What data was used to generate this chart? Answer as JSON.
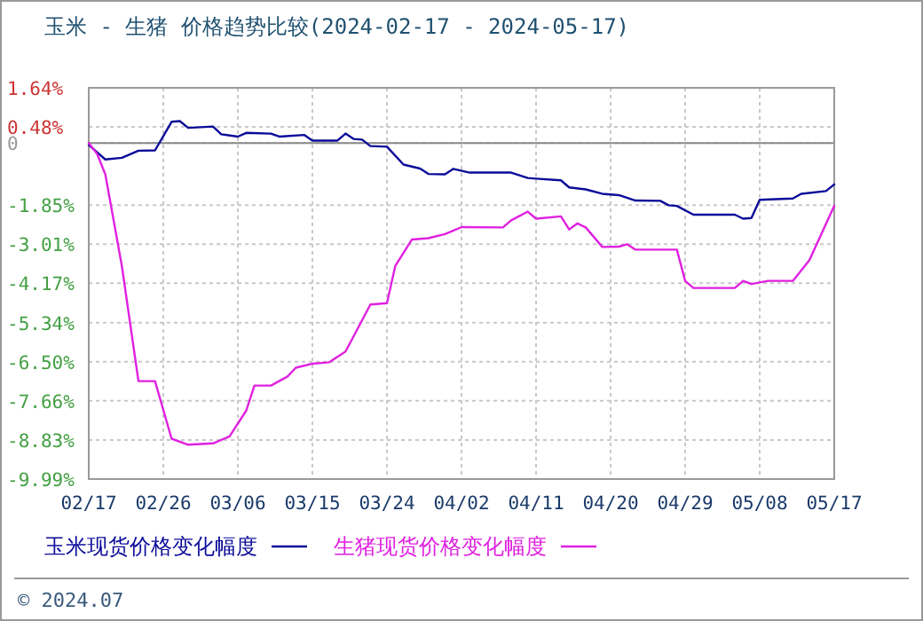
{
  "chart_data": {
    "type": "line",
    "title": "玉米 - 生猪 价格趋势比较(2024-02-17 - 2024-05-17)",
    "x": [
      "2024-02-17",
      "2024-02-19",
      "2024-02-21",
      "2024-02-23",
      "2024-02-25",
      "2024-02-27",
      "2024-02-28",
      "2024-02-29",
      "2024-03-03",
      "2024-03-04",
      "2024-03-06",
      "2024-03-07",
      "2024-03-10",
      "2024-03-11",
      "2024-03-14",
      "2024-03-15",
      "2024-03-18",
      "2024-03-19",
      "2024-03-20",
      "2024-03-21",
      "2024-03-22",
      "2024-03-24",
      "2024-03-26",
      "2024-03-28",
      "2024-03-29",
      "2024-03-31",
      "2024-04-01",
      "2024-04-03",
      "2024-04-08",
      "2024-04-10",
      "2024-04-11",
      "2024-04-14",
      "2024-04-15",
      "2024-04-17",
      "2024-04-19",
      "2024-04-21",
      "2024-04-23",
      "2024-04-26",
      "2024-04-27",
      "2024-04-28",
      "2024-04-30",
      "2024-05-05",
      "2024-05-06",
      "2024-05-07",
      "2024-05-08",
      "2024-05-12",
      "2024-05-13",
      "2024-05-16",
      "2024-05-17"
    ],
    "series": [
      {
        "name": "玉米现货价格变化幅度",
        "color": "#0a0a99",
        "values": [
          -0.06,
          -0.49,
          -0.44,
          -0.23,
          -0.22,
          0.63,
          0.65,
          0.45,
          0.49,
          0.26,
          0.19,
          0.3,
          0.28,
          0.19,
          0.24,
          0.07,
          0.07,
          0.28,
          0.12,
          0.1,
          -0.09,
          -0.11,
          -0.64,
          -0.76,
          -0.92,
          -0.93,
          -0.77,
          -0.88,
          -0.88,
          -1.04,
          -1.06,
          -1.11,
          -1.32,
          -1.38,
          -1.51,
          -1.55,
          -1.71,
          -1.72,
          -1.85,
          -1.87,
          -2.13,
          -2.13,
          -2.25,
          -2.23,
          -1.69,
          -1.65,
          -1.51,
          -1.43,
          -1.23
        ]
      },
      {
        "name": "生猪现货价格变化幅度",
        "color": "#e020e0",
        "x": [
          "2024-02-17",
          "2024-02-18",
          "2024-02-19",
          "2024-02-21",
          "2024-02-23",
          "2024-02-25",
          "2024-02-27",
          "2024-02-29",
          "2024-03-03",
          "2024-03-05",
          "2024-03-07",
          "2024-03-08",
          "2024-03-10",
          "2024-03-12",
          "2024-03-13",
          "2024-03-15",
          "2024-03-17",
          "2024-03-19",
          "2024-03-22",
          "2024-03-24",
          "2024-03-25",
          "2024-03-27",
          "2024-03-29",
          "2024-03-31",
          "2024-04-02",
          "2024-04-07",
          "2024-04-08",
          "2024-04-10",
          "2024-04-11",
          "2024-04-14",
          "2024-04-15",
          "2024-04-16",
          "2024-04-17",
          "2024-04-19",
          "2024-04-21",
          "2024-04-22",
          "2024-04-23",
          "2024-04-28",
          "2024-04-29",
          "2024-04-30",
          "2024-05-05",
          "2024-05-06",
          "2024-05-07",
          "2024-05-09",
          "2024-05-12",
          "2024-05-14",
          "2024-05-17"
        ],
        "values": [
          0.0,
          -0.32,
          -0.93,
          -3.66,
          -7.08,
          -7.08,
          -8.79,
          -8.97,
          -8.93,
          -8.72,
          -7.96,
          -7.21,
          -7.21,
          -6.94,
          -6.68,
          -6.56,
          -6.52,
          -6.2,
          -4.8,
          -4.76,
          -3.66,
          -2.87,
          -2.83,
          -2.71,
          -2.5,
          -2.51,
          -2.3,
          -2.04,
          -2.25,
          -2.18,
          -2.57,
          -2.39,
          -2.51,
          -3.09,
          -3.08,
          -3.01,
          -3.17,
          -3.17,
          -4.1,
          -4.31,
          -4.31,
          -4.1,
          -4.19,
          -4.1,
          -4.1,
          -3.48,
          -1.87
        ]
      }
    ],
    "xlim": [
      "2024-02-17",
      "2024-05-17"
    ],
    "xticks": [
      {
        "value": "2024-02-17",
        "label": "02/17"
      },
      {
        "value": "2024-02-26",
        "label": "02/26"
      },
      {
        "value": "2024-03-06",
        "label": "03/06"
      },
      {
        "value": "2024-03-15",
        "label": "03/15"
      },
      {
        "value": "2024-03-24",
        "label": "03/24"
      },
      {
        "value": "2024-04-02",
        "label": "04/02"
      },
      {
        "value": "2024-04-11",
        "label": "04/11"
      },
      {
        "value": "2024-04-20",
        "label": "04/20"
      },
      {
        "value": "2024-04-29",
        "label": "04/29"
      },
      {
        "value": "2024-05-08",
        "label": "05/08"
      },
      {
        "value": "2024-05-17",
        "label": "05/17"
      }
    ],
    "ylim": [
      -9.99,
      1.64
    ],
    "yticks": [
      {
        "value": 1.64,
        "label": "1.64%"
      },
      {
        "value": 0.48,
        "label": "0.48%"
      },
      0,
      {
        "value": -1.85,
        "label": "-1.85%"
      },
      {
        "value": -3.01,
        "label": "-3.01%"
      },
      {
        "value": -4.17,
        "label": "-4.17%"
      },
      {
        "value": -5.34,
        "label": "-5.34%"
      },
      {
        "value": -6.5,
        "label": "-6.50%"
      },
      {
        "value": -7.66,
        "label": "-7.66%"
      },
      {
        "value": -8.83,
        "label": "-8.83%"
      },
      {
        "value": -9.99,
        "label": "-9.99%"
      }
    ],
    "ref_lines": [
      {
        "axis": "y",
        "value": 0,
        "color": "#888888"
      }
    ],
    "grid": true,
    "legend": "bottom",
    "line_style": "solid",
    "marker": "none",
    "annotations": [
      "© 2024.07"
    ]
  }
}
